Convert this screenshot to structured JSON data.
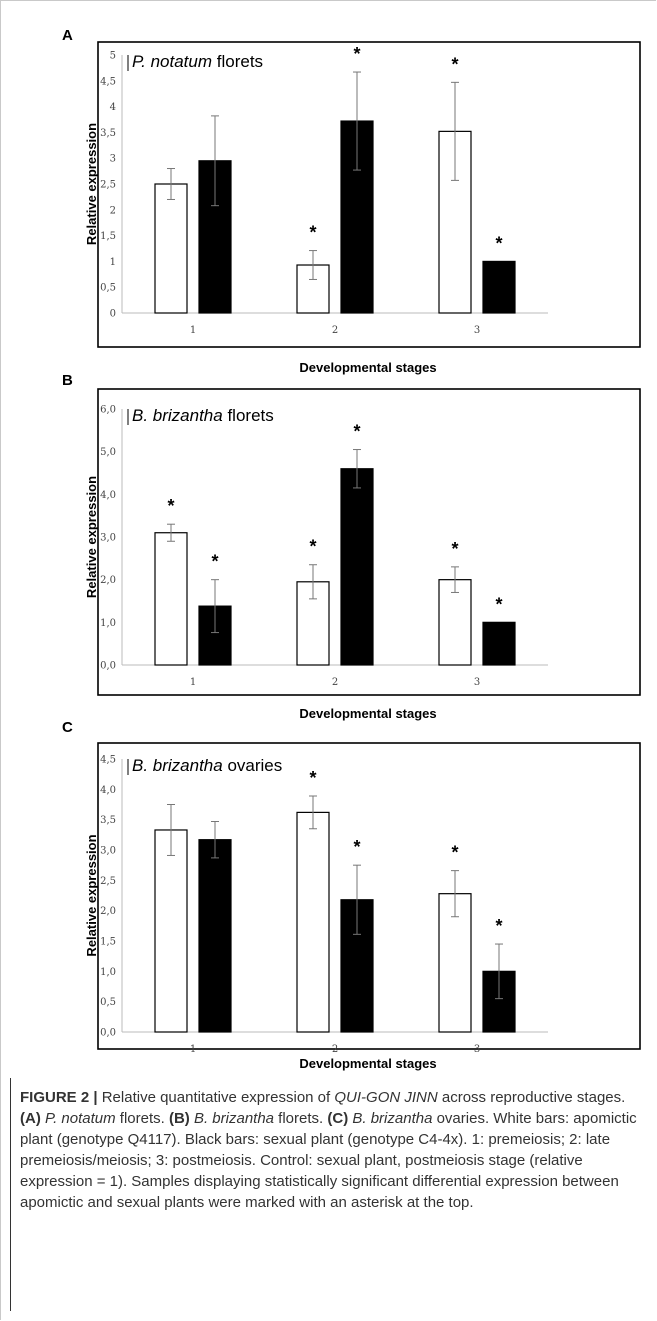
{
  "figure": {
    "x_axis_label": "Developmental stages",
    "y_axis_label": "Relative expression"
  },
  "chart_data": [
    {
      "type": "bar",
      "panel": "A",
      "title": "P. notatum florets",
      "xlabel": "Developmental stages",
      "ylabel": "Relative expression",
      "categories": [
        "1",
        "2",
        "3"
      ],
      "ylim": [
        0,
        5
      ],
      "yticks": [
        "0",
        "0,5",
        "1",
        "1,5",
        "2",
        "2,5",
        "3",
        "3,5",
        "4",
        "4,5",
        "5"
      ],
      "series": [
        {
          "color": "#ffffff",
          "values": [
            2.5,
            0.93,
            3.52
          ],
          "errors": [
            0.3,
            0.28,
            0.95
          ],
          "significant": [
            false,
            true,
            true
          ]
        },
        {
          "color": "#000000",
          "values": [
            2.95,
            3.72,
            1.0
          ],
          "errors": [
            0.87,
            0.95,
            0.0
          ],
          "significant": [
            false,
            true,
            true
          ]
        }
      ],
      "asterisk": "*"
    },
    {
      "type": "bar",
      "panel": "B",
      "title": "B. brizantha florets",
      "xlabel": "Developmental stages",
      "ylabel": "Relative expression",
      "categories": [
        "1",
        "2",
        "3"
      ],
      "ylim": [
        0,
        6
      ],
      "yticks": [
        "0,0",
        "1,0",
        "2,0",
        "3,0",
        "4,0",
        "5,0",
        "6,0"
      ],
      "series": [
        {
          "color": "#ffffff",
          "values": [
            3.1,
            1.95,
            2.0
          ],
          "errors": [
            0.2,
            0.4,
            0.3
          ],
          "significant": [
            true,
            true,
            true
          ]
        },
        {
          "color": "#000000",
          "values": [
            1.38,
            4.6,
            1.0
          ],
          "errors": [
            0.62,
            0.45,
            0.0
          ],
          "significant": [
            true,
            true,
            true
          ]
        }
      ],
      "asterisk": "*"
    },
    {
      "type": "bar",
      "panel": "C",
      "title": "B. brizantha ovaries",
      "xlabel": "Developmental stages",
      "ylabel": "Relative expression",
      "categories": [
        "1",
        "2",
        "3"
      ],
      "ylim": [
        0,
        4.5
      ],
      "yticks": [
        "0,0",
        "0,5",
        "1,0",
        "1,5",
        "2,0",
        "2,5",
        "3,0",
        "3,5",
        "4,0",
        "4,5"
      ],
      "series": [
        {
          "color": "#ffffff",
          "values": [
            3.33,
            3.62,
            2.28
          ],
          "errors": [
            0.42,
            0.27,
            0.38
          ],
          "significant": [
            false,
            true,
            true
          ]
        },
        {
          "color": "#000000",
          "values": [
            3.17,
            2.18,
            1.0
          ],
          "errors": [
            0.3,
            0.57,
            0.45
          ],
          "significant": [
            false,
            true,
            true
          ]
        }
      ],
      "asterisk": "*"
    }
  ],
  "caption": {
    "lead": "FIGURE 2 |",
    "t1": " Relative quantitative expression of ",
    "gene": "QUI-GON JINN",
    "t2": " across reproductive stages. ",
    "a": "(A)",
    "a_text": " P. notatum",
    "a_rest": " florets. ",
    "b": "(B)",
    "b_text": " B. brizantha",
    "b_rest": " florets. ",
    "c": "(C)",
    "c_text": " B. brizantha",
    "c_rest": " ovaries. White bars: apomictic plant (genotype Q4117). Black bars: sexual plant (genotype C4-4x). 1: premeiosis; 2: late premeiosis/meiosis; 3: postmeiosis. Control: sexual plant, postmeiosis stage (relative expression = 1). Samples displaying statistically significant differential expression between apomictic and sexual plants were marked with an asterisk at the top."
  }
}
